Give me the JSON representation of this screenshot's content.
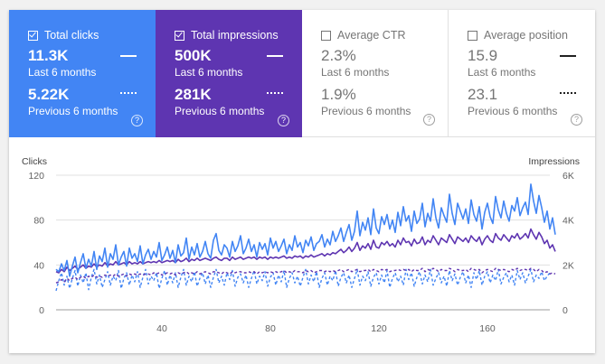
{
  "tiles": [
    {
      "label": "Total clicks",
      "value": "11.3K",
      "period": "Last 6 months",
      "prev_value": "5.22K",
      "prev_period": "Previous 6 months",
      "selected": true,
      "help_icon": "?"
    },
    {
      "label": "Total impressions",
      "value": "500K",
      "period": "Last 6 months",
      "prev_value": "281K",
      "prev_period": "Previous 6 months",
      "selected": true,
      "help_icon": "?"
    },
    {
      "label": "Average CTR",
      "value": "2.3%",
      "period": "Last 6 months",
      "prev_value": "1.9%",
      "prev_period": "Previous 6 months",
      "selected": false,
      "help_icon": "?"
    },
    {
      "label": "Average position",
      "value": "15.9",
      "period": "Last 6 months",
      "prev_value": "23.1",
      "prev_period": "Previous 6 months",
      "selected": false,
      "help_icon": "?"
    }
  ],
  "colors": {
    "clicks": "#4285f4",
    "impressions": "#5e35b1",
    "grid": "#e0e0e0"
  },
  "chart_data": {
    "type": "line",
    "left_axis_label": "Clicks",
    "right_axis_label": "Impressions",
    "ylim_left": [
      0,
      120
    ],
    "ylim_right": [
      0,
      6000
    ],
    "yticks_left": [
      "0",
      "40",
      "80",
      "120"
    ],
    "yticks_right": [
      "0",
      "2K",
      "4K",
      "6K"
    ],
    "xticks": [
      "40",
      "80",
      "120",
      "160"
    ],
    "xticks_values": [
      40,
      80,
      120,
      160
    ],
    "xlim": [
      1,
      183
    ],
    "series": [
      {
        "name": "Total clicks",
        "period": "Last 6 months",
        "color": "#4285f4",
        "style": "solid",
        "axis": "left",
        "values": [
          36,
          34,
          41,
          35,
          44,
          30,
          39,
          47,
          33,
          42,
          50,
          37,
          45,
          39,
          52,
          36,
          48,
          43,
          55,
          38,
          50,
          45,
          58,
          40,
          47,
          52,
          39,
          55,
          46,
          50,
          43,
          57,
          41,
          49,
          54,
          45,
          52,
          47,
          60,
          44,
          49,
          56,
          46,
          53,
          42,
          58,
          48,
          51,
          64,
          45,
          56,
          49,
          59,
          47,
          52,
          61,
          50,
          46,
          62,
          68,
          53,
          49,
          58,
          55,
          47,
          61,
          52,
          57,
          66,
          50,
          55,
          63,
          52,
          58,
          47,
          60,
          54,
          59,
          49,
          64,
          55,
          61,
          52,
          57,
          63,
          50,
          58,
          53,
          66,
          56,
          60,
          51,
          62,
          57,
          65,
          53,
          59,
          61,
          67,
          56,
          63,
          58,
          70,
          61,
          66,
          73,
          61,
          69,
          76,
          62,
          70,
          88,
          66,
          78,
          71,
          82,
          67,
          90,
          73,
          68,
          83,
          76,
          85,
          72,
          80,
          69,
          87,
          75,
          92,
          79,
          84,
          70,
          88,
          77,
          81,
          95,
          74,
          86,
          79,
          99,
          82,
          73,
          91,
          84,
          78,
          103,
          86,
          76,
          95,
          88,
          81,
          90,
          77,
          98,
          85,
          79,
          92,
          72,
          87,
          95,
          83,
          77,
          101,
          89,
          82,
          97,
          86,
          79,
          93,
          88,
          100,
          84,
          91,
          96,
          85,
          112,
          97,
          86,
          102,
          91,
          78,
          88,
          72,
          82,
          67
        ]
      },
      {
        "name": "Total impressions",
        "period": "Last 6 months",
        "color": "#5e35b1",
        "style": "solid",
        "axis": "left",
        "values": [
          34,
          33,
          36,
          34,
          38,
          35,
          37,
          39,
          36,
          38,
          40,
          37,
          39,
          38,
          41,
          38,
          40,
          39,
          42,
          39,
          41,
          40,
          43,
          40,
          41,
          42,
          40,
          43,
          41,
          42,
          41,
          43,
          41,
          42,
          43,
          42,
          43,
          42,
          44,
          42,
          43,
          44,
          43,
          44,
          42,
          45,
          43,
          44,
          46,
          43,
          45,
          44,
          46,
          44,
          45,
          46,
          45,
          44,
          46,
          47,
          45,
          44,
          46,
          46,
          44,
          47,
          45,
          46,
          47,
          45,
          46,
          47,
          46,
          47,
          45,
          47,
          46,
          47,
          45,
          47,
          46,
          47,
          46,
          47,
          48,
          46,
          47,
          46,
          48,
          47,
          48,
          46,
          48,
          47,
          49,
          47,
          48,
          49,
          50,
          48,
          50,
          49,
          51,
          50,
          52,
          54,
          51,
          53,
          56,
          52,
          55,
          60,
          53,
          57,
          55,
          59,
          54,
          62,
          56,
          55,
          60,
          58,
          61,
          57,
          59,
          56,
          62,
          58,
          64,
          60,
          61,
          57,
          63,
          59,
          60,
          65,
          58,
          62,
          60,
          66,
          62,
          58,
          64,
          62,
          60,
          67,
          63,
          59,
          65,
          63,
          61,
          64,
          60,
          66,
          63,
          61,
          65,
          58,
          63,
          66,
          62,
          60,
          68,
          64,
          62,
          67,
          64,
          61,
          66,
          64,
          68,
          63,
          65,
          68,
          64,
          72,
          67,
          63,
          69,
          65,
          59,
          62,
          55,
          58,
          52
        ]
      },
      {
        "name": "Total clicks",
        "period": "Previous 6 months",
        "color": "#4285f4",
        "style": "dashed",
        "axis": "left",
        "values": [
          17,
          26,
          33,
          22,
          30,
          19,
          28,
          35,
          21,
          31,
          24,
          33,
          18,
          29,
          36,
          23,
          31,
          20,
          27,
          34,
          22,
          30,
          26,
          35,
          19,
          28,
          33,
          22,
          31,
          25,
          34,
          20,
          29,
          36,
          23,
          30,
          26,
          33,
          19,
          28,
          35,
          22,
          31,
          24,
          33,
          20,
          29,
          36,
          22,
          30,
          25,
          34,
          21,
          28,
          33,
          23,
          31,
          20,
          29,
          36,
          24,
          30,
          22,
          33,
          27,
          35,
          21,
          29,
          32,
          24,
          31,
          20,
          28,
          35,
          23,
          30,
          26,
          34,
          21,
          29,
          33,
          22,
          31,
          25,
          35,
          20,
          28,
          33,
          24,
          30,
          21,
          29,
          36,
          23,
          31,
          25,
          34,
          20,
          28,
          33,
          22,
          30,
          26,
          35,
          21,
          29,
          33,
          24,
          31,
          20,
          28,
          36,
          22,
          30,
          26,
          34,
          21,
          29,
          33,
          23,
          31,
          24,
          35,
          20,
          28,
          33,
          25,
          30,
          22,
          36,
          27,
          33,
          21,
          29,
          34,
          23,
          31,
          25,
          36,
          22,
          28,
          33,
          24,
          30,
          21,
          35,
          26,
          32,
          22,
          29,
          34,
          24,
          31,
          20,
          33,
          27,
          35,
          22,
          30,
          34,
          24,
          31,
          26,
          36,
          23,
          29,
          33,
          25,
          31,
          22,
          35,
          27,
          33,
          24,
          30,
          36,
          25,
          31,
          28,
          34,
          26,
          30,
          33
        ]
      },
      {
        "name": "Total impressions",
        "period": "Previous 6 months",
        "color": "#5e35b1",
        "style": "dashed",
        "axis": "left",
        "values": [
          24,
          25,
          27,
          25,
          28,
          26,
          28,
          29,
          27,
          29,
          30,
          28,
          30,
          29,
          31,
          29,
          30,
          29,
          31,
          30,
          31,
          30,
          32,
          30,
          31,
          32,
          30,
          32,
          31,
          32,
          31,
          32,
          31,
          32,
          32,
          31,
          33,
          32,
          33,
          31,
          32,
          33,
          32,
          33,
          31,
          33,
          32,
          33,
          34,
          32,
          33,
          32,
          34,
          32,
          33,
          34,
          33,
          32,
          34,
          34,
          33,
          32,
          34,
          33,
          32,
          34,
          33,
          34,
          34,
          33,
          33,
          34,
          33,
          34,
          32,
          34,
          33,
          34,
          33,
          34,
          33,
          34,
          33,
          34,
          35,
          33,
          34,
          33,
          35,
          34,
          34,
          33,
          35,
          34,
          35,
          33,
          34,
          35,
          35,
          34,
          35,
          34,
          35,
          34,
          35,
          36,
          34,
          35,
          36,
          34,
          35,
          36,
          34,
          35,
          35,
          36,
          34,
          36,
          35,
          34,
          36,
          35,
          36,
          34,
          35,
          35,
          36,
          35,
          36,
          35,
          36,
          34,
          36,
          35,
          35,
          37,
          34,
          36,
          35,
          37,
          36,
          34,
          36,
          35,
          35,
          37,
          36,
          34,
          36,
          35,
          35,
          36,
          34,
          37,
          36,
          35,
          36,
          33,
          35,
          36,
          35,
          34,
          37,
          36,
          35,
          36,
          35,
          34,
          36,
          35,
          37,
          35,
          36,
          36,
          35,
          37,
          36,
          34,
          36,
          35,
          33,
          34,
          32,
          33,
          32
        ]
      }
    ]
  }
}
